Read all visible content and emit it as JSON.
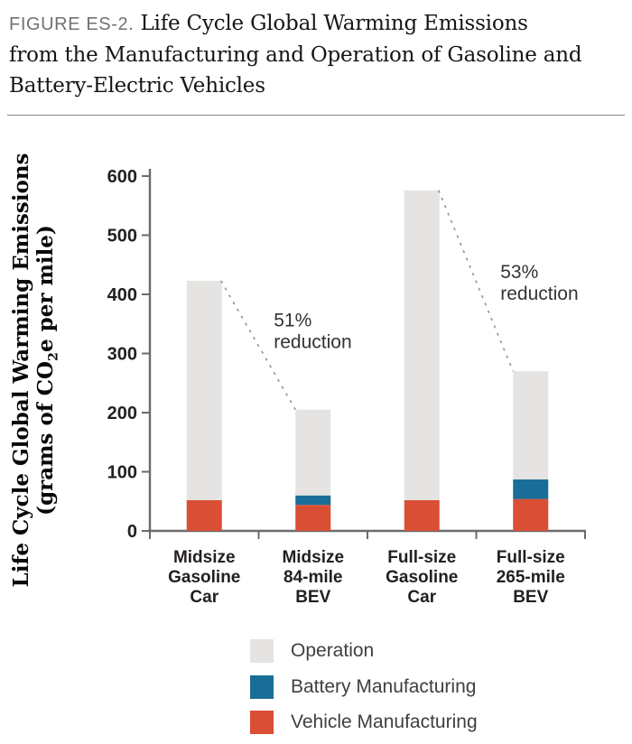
{
  "header": {
    "figure_label": "FIGURE ES-2.",
    "title_lines": [
      "Life Cycle Global Warming Emissions",
      "from the Manufacturing and Operation of Gasoline and",
      "Battery-Electric Vehicles"
    ]
  },
  "y_axis": {
    "title_line1": "Life Cycle Global Warming Emissions",
    "title_line2_pre": "(grams of CO",
    "title_line2_sub": "2",
    "title_line2_post": "e per mile)"
  },
  "chart_data": {
    "type": "bar",
    "stacked": true,
    "title": "Life Cycle Global Warming Emissions from the Manufacturing and Operation of Gasoline and Battery-Electric Vehicles",
    "ylabel": "Life Cycle Global Warming Emissions (grams of CO2e per mile)",
    "xlabel": "",
    "ylim": [
      0,
      600
    ],
    "yticks": [
      0,
      100,
      200,
      300,
      400,
      500,
      600
    ],
    "grid": false,
    "legend_position": "bottom",
    "categories": [
      "Midsize Gasoline Car",
      "Midsize 84-mile BEV",
      "Full-size Gasoline Car",
      "Full-size 265-mile BEV"
    ],
    "category_label_lines": [
      [
        "Midsize",
        "Gasoline",
        "Car"
      ],
      [
        "Midsize",
        "84-mile",
        "BEV"
      ],
      [
        "Full-size",
        "Gasoline",
        "Car"
      ],
      [
        "Full-size",
        "265-mile",
        "BEV"
      ]
    ],
    "series": [
      {
        "name": "Vehicle Manufacturing",
        "color": "#d94e34",
        "values": [
          52,
          44,
          52,
          54
        ]
      },
      {
        "name": "Battery Manufacturing",
        "color": "#186e96",
        "values": [
          0,
          16,
          0,
          33
        ]
      },
      {
        "name": "Operation",
        "color": "#e5e4e2",
        "values": [
          371,
          145,
          524,
          183
        ]
      }
    ],
    "totals": [
      423,
      205,
      576,
      270
    ],
    "annotations": [
      {
        "lines": [
          "51%",
          "reduction"
        ],
        "from_category": 0,
        "to_category": 1
      },
      {
        "lines": [
          "53%",
          "reduction"
        ],
        "from_category": 2,
        "to_category": 3
      }
    ],
    "legend": [
      {
        "label": "Operation",
        "color": "#e5e4e2"
      },
      {
        "label": "Battery Manufacturing",
        "color": "#186e96"
      },
      {
        "label": "Vehicle Manufacturing",
        "color": "#d94e34"
      }
    ],
    "colors": {
      "axis": "#6a6b6e",
      "tick_text": "#231f20",
      "annotation_text": "#333437",
      "dashed_line": "#97989b"
    }
  }
}
